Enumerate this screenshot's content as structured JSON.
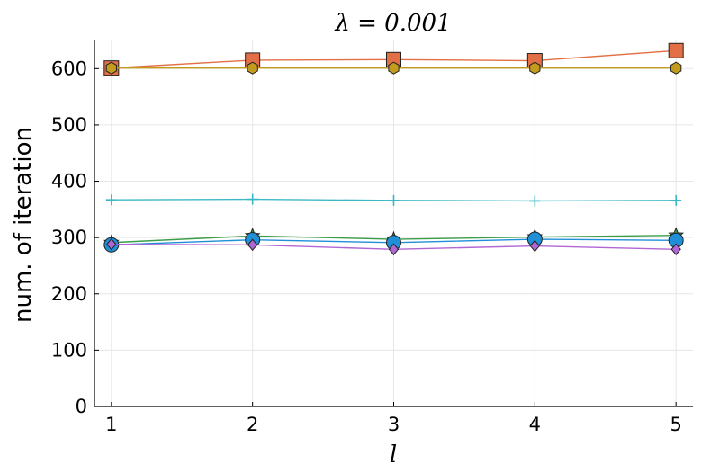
{
  "chart_data": {
    "type": "line",
    "title": "λ = 0.001",
    "xlabel": "l",
    "ylabel": "num. of iteration",
    "x": [
      1,
      2,
      3,
      4,
      5
    ],
    "xlim": [
      0.88,
      5.12
    ],
    "ylim": [
      0,
      650
    ],
    "xticks": [
      "1",
      "2",
      "3",
      "4",
      "5"
    ],
    "yticks": [
      "0",
      "100",
      "200",
      "300",
      "400",
      "500",
      "600"
    ],
    "grid": true,
    "legend": "none",
    "series": [
      {
        "values": [
          601,
          615,
          616,
          614,
          632
        ],
        "color": "#e26f46",
        "marker": "square"
      },
      {
        "values": [
          601,
          601,
          601,
          601,
          601
        ],
        "color": "#c39b1e",
        "marker": "hexagon"
      },
      {
        "values": [
          367,
          368,
          366,
          365,
          366
        ],
        "color": "#3bb8c7",
        "marker": "cross"
      },
      {
        "values": [
          291,
          303,
          297,
          301,
          304
        ],
        "color": "#3a9e4a",
        "marker": "star"
      },
      {
        "values": [
          287,
          296,
          291,
          297,
          295
        ],
        "color": "#1f8fd8",
        "marker": "circle"
      },
      {
        "values": [
          288,
          287,
          279,
          285,
          279
        ],
        "color": "#b067d3",
        "marker": "diamond"
      }
    ]
  }
}
